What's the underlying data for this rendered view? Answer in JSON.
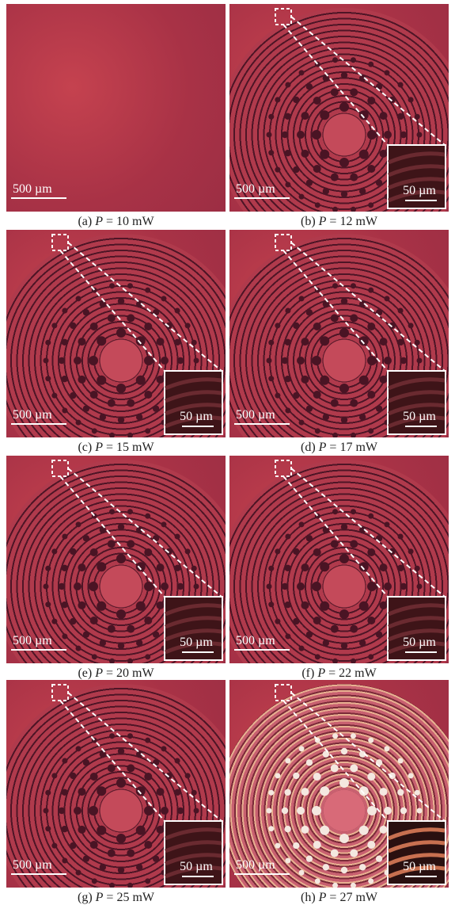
{
  "panels": [
    {
      "caption": {
        "label": "(a)",
        "variable": "P",
        "text": "= 10 mW"
      },
      "scale_bar": "500 µm"
    },
    {
      "caption": {
        "label": "(b)",
        "variable": "P",
        "text": "= 12 mW"
      },
      "scale_bar": "500 µm",
      "inset_scale_bar": "50 µm"
    },
    {
      "caption": {
        "label": "(c)",
        "variable": "P",
        "text": "= 15 mW"
      },
      "scale_bar": "500 µm",
      "inset_scale_bar": "50 µm"
    },
    {
      "caption": {
        "label": "(d)",
        "variable": "P",
        "text": "= 17 mW"
      },
      "scale_bar": "500 µm",
      "inset_scale_bar": "50 µm"
    },
    {
      "caption": {
        "label": "(e)",
        "variable": "P",
        "text": "= 20 mW"
      },
      "scale_bar": "500 µm",
      "inset_scale_bar": "50 µm"
    },
    {
      "caption": {
        "label": "(f)",
        "variable": "P",
        "text": "= 22 mW"
      },
      "scale_bar": "500 µm",
      "inset_scale_bar": "50 µm"
    },
    {
      "caption": {
        "label": "(g)",
        "variable": "P",
        "text": "= 25 mW"
      },
      "scale_bar": "500 µm",
      "inset_scale_bar": "50 µm"
    },
    {
      "caption": {
        "label": "(h)",
        "variable": "P",
        "text": "= 27 mW"
      },
      "scale_bar": "500 µm",
      "inset_scale_bar": "50 µm"
    }
  ]
}
